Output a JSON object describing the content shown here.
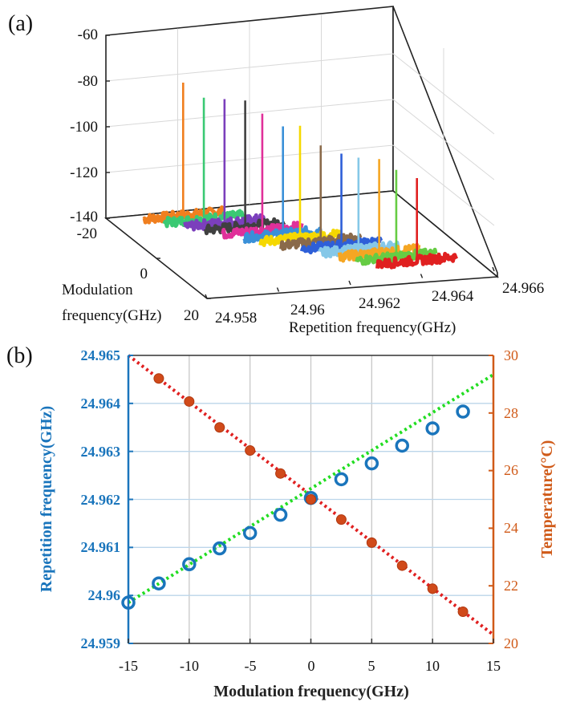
{
  "panels": {
    "a_label": "(a)",
    "b_label": "(b)"
  },
  "chart_data": [
    {
      "panel": "a",
      "type": "line",
      "projection": "3d-waterfall",
      "zlim": [
        -140,
        -60
      ],
      "z_ticks": [
        "-60",
        "-80",
        "-100",
        "-120",
        "-140"
      ],
      "ylim": [
        -20,
        20
      ],
      "y_ticks": [
        "-20",
        "0",
        "20"
      ],
      "ylabel_line1": "Modulation",
      "ylabel_line2": "frequency(GHz)",
      "xlim": [
        24.958,
        24.966
      ],
      "x_ticks": [
        "24.958",
        "24.96",
        "24.962",
        "24.964",
        "24.966"
      ],
      "xlabel": "Repetition frequency(GHz)",
      "series": [
        {
          "color": "#f07f1f",
          "modulation": -15,
          "peak_freq": 24.9598,
          "peak": -79,
          "floor": -137
        },
        {
          "color": "#3ac973",
          "modulation": -12.5,
          "peak_freq": 24.9602,
          "peak": -84,
          "floor": -137
        },
        {
          "color": "#7b3fbc",
          "modulation": -10,
          "peak_freq": 24.9606,
          "peak": -83,
          "floor": -137
        },
        {
          "color": "#404040",
          "modulation": -7.5,
          "peak_freq": 24.961,
          "peak": -82,
          "floor": -137
        },
        {
          "color": "#e0309a",
          "modulation": -5,
          "peak_freq": 24.9613,
          "peak": -86,
          "floor": -137
        },
        {
          "color": "#3a90d8",
          "modulation": -2.5,
          "peak_freq": 24.9617,
          "peak": -90,
          "floor": -137
        },
        {
          "color": "#f5d800",
          "modulation": 0,
          "peak_freq": 24.962,
          "peak": -88,
          "floor": -137
        },
        {
          "color": "#8a6a4a",
          "modulation": 2.5,
          "peak_freq": 24.9624,
          "peak": -95,
          "floor": -137
        },
        {
          "color": "#2e5fd8",
          "modulation": 5,
          "peak_freq": 24.9628,
          "peak": -97,
          "floor": -137
        },
        {
          "color": "#86c8e8",
          "modulation": 7.5,
          "peak_freq": 24.9631,
          "peak": -97,
          "floor": -137
        },
        {
          "color": "#f5a623",
          "modulation": 10,
          "peak_freq": 24.9635,
          "peak": -96,
          "floor": -137
        },
        {
          "color": "#66cc44",
          "modulation": 12.5,
          "peak_freq": 24.9638,
          "peak": -99,
          "floor": -137
        },
        {
          "color": "#e02020",
          "modulation": 15,
          "peak_freq": 24.9642,
          "peak": -101,
          "floor": -137
        }
      ]
    },
    {
      "panel": "b",
      "type": "scatter",
      "xlabel": "Modulation frequency(GHz)",
      "xlim": [
        -15,
        15
      ],
      "x_ticks": [
        "-15",
        "-10",
        "-5",
        "0",
        "5",
        "10",
        "15"
      ],
      "x_tick_values": [
        -15,
        -10,
        -5,
        0,
        5,
        10,
        15
      ],
      "ylabel_left": "Repetition frequency(GHz)",
      "ylim_left": [
        24.959,
        24.965
      ],
      "y_ticks_left": [
        "24.965",
        "24.964",
        "24.963",
        "24.962",
        "24.961",
        "24.96",
        "24.959"
      ],
      "y_tick_values_left": [
        24.965,
        24.964,
        24.963,
        24.962,
        24.961,
        24.96,
        24.959
      ],
      "ylabel_right": "Temperature(°C)",
      "ylim_right": [
        20,
        30
      ],
      "y_ticks_right": [
        "30",
        "28",
        "26",
        "24",
        "22",
        "20"
      ],
      "y_tick_values_right": [
        30,
        28,
        26,
        24,
        22,
        20
      ],
      "grid": true,
      "colors": {
        "left_axis": "#1a75bc",
        "right_axis": "#d05a18",
        "rep_marker": "#1a75bc",
        "temp_marker": "#d04a1a",
        "rep_fit": "#22dd22",
        "temp_fit": "#e02020"
      },
      "series": [
        {
          "axis": "left",
          "marker": "hollow-circle",
          "x": [
            -15,
            -12.5,
            -10,
            -7.5,
            -5,
            -2.5,
            0,
            2.5,
            5,
            7.5,
            10,
            12.5
          ],
          "y": [
            24.95985,
            24.96025,
            24.96065,
            24.96098,
            24.9613,
            24.96168,
            24.96203,
            24.96242,
            24.96275,
            24.96312,
            24.96348,
            24.96383
          ]
        },
        {
          "axis": "right",
          "marker": "filled-circle",
          "x": [
            -12.5,
            -10,
            -7.5,
            -5,
            -2.5,
            0,
            2.5,
            5,
            7.5,
            10,
            12.5
          ],
          "y": [
            29.2,
            28.4,
            27.5,
            26.7,
            25.9,
            25.0,
            24.3,
            23.5,
            22.7,
            21.9,
            21.1
          ]
        }
      ],
      "fits": [
        {
          "axis": "left",
          "x": [
            -15,
            15
          ],
          "y": [
            24.95985,
            24.9646
          ]
        },
        {
          "axis": "right",
          "x": [
            -15,
            15
          ],
          "y": [
            30.0,
            20.3
          ]
        }
      ]
    }
  ]
}
